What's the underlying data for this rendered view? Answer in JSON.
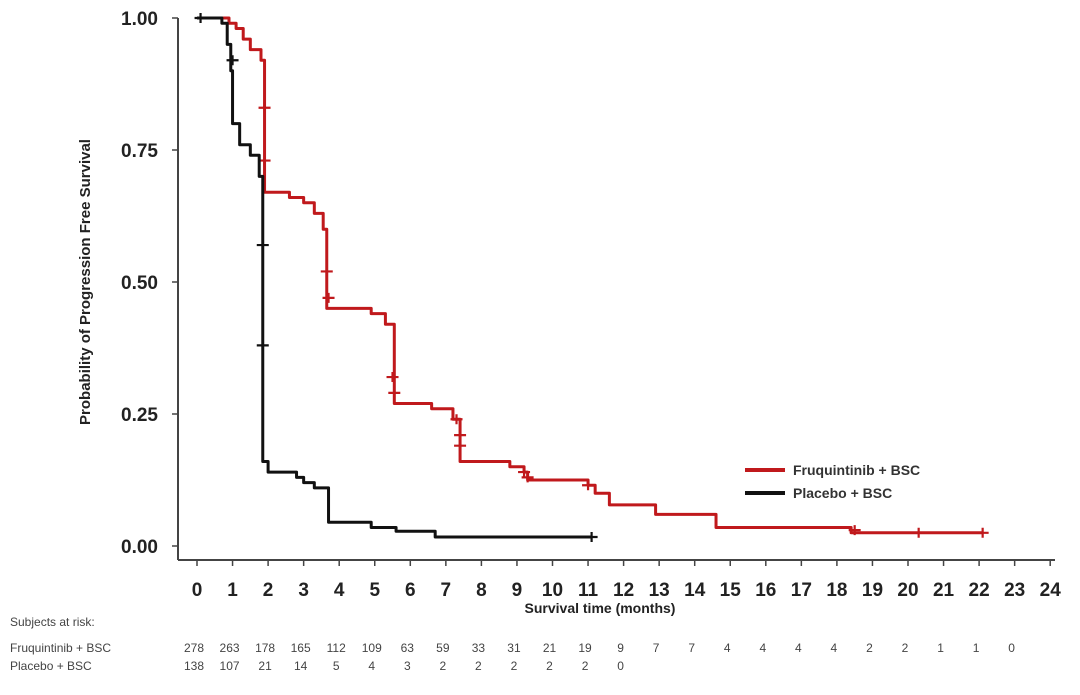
{
  "chart_data": {
    "type": "line",
    "subtype": "kaplan-meier step",
    "title": "",
    "xlabel": "Survival time (months)",
    "ylabel": "Probability of Progression Free Survival",
    "xlim": [
      0,
      24
    ],
    "ylim": [
      0,
      1
    ],
    "xticks": [
      0,
      1,
      2,
      3,
      4,
      5,
      6,
      7,
      8,
      9,
      10,
      11,
      12,
      13,
      14,
      15,
      16,
      17,
      18,
      19,
      20,
      21,
      22,
      23,
      24
    ],
    "yticks": [
      "0.00",
      "0.25",
      "0.50",
      "0.75",
      "1.00"
    ],
    "grid": false,
    "legend_position": "right",
    "series": [
      {
        "name": "Fruquintinib + BSC",
        "color": "#c0191c",
        "steps": [
          [
            0,
            1.0
          ],
          [
            0.9,
            0.99
          ],
          [
            1.1,
            0.98
          ],
          [
            1.3,
            0.96
          ],
          [
            1.5,
            0.94
          ],
          [
            1.8,
            0.92
          ],
          [
            1.9,
            0.67
          ],
          [
            2.6,
            0.66
          ],
          [
            3.0,
            0.65
          ],
          [
            3.3,
            0.63
          ],
          [
            3.55,
            0.6
          ],
          [
            3.65,
            0.45
          ],
          [
            4.9,
            0.44
          ],
          [
            5.3,
            0.42
          ],
          [
            5.55,
            0.27
          ],
          [
            6.6,
            0.26
          ],
          [
            7.2,
            0.24
          ],
          [
            7.4,
            0.16
          ],
          [
            8.8,
            0.15
          ],
          [
            9.2,
            0.14
          ],
          [
            9.3,
            0.125
          ],
          [
            11.0,
            0.115
          ],
          [
            11.2,
            0.1
          ],
          [
            11.6,
            0.078
          ],
          [
            12.9,
            0.06
          ],
          [
            14.6,
            0.035
          ],
          [
            18.4,
            0.025
          ],
          [
            22.1,
            0.025
          ]
        ],
        "censored": [
          [
            1.9,
            0.83
          ],
          [
            1.9,
            0.73
          ],
          [
            3.65,
            0.52
          ],
          [
            3.7,
            0.47
          ],
          [
            5.5,
            0.32
          ],
          [
            5.55,
            0.29
          ],
          [
            7.3,
            0.24
          ],
          [
            7.4,
            0.21
          ],
          [
            7.4,
            0.19
          ],
          [
            9.2,
            0.14
          ],
          [
            9.3,
            0.13
          ],
          [
            11.0,
            0.115
          ],
          [
            18.5,
            0.03
          ],
          [
            20.3,
            0.025
          ],
          [
            22.1,
            0.025
          ]
        ]
      },
      {
        "name": "Placebo + BSC",
        "color": "#111111",
        "steps": [
          [
            0,
            1.0
          ],
          [
            0.7,
            0.99
          ],
          [
            0.85,
            0.95
          ],
          [
            0.95,
            0.9
          ],
          [
            1.0,
            0.8
          ],
          [
            1.2,
            0.76
          ],
          [
            1.5,
            0.74
          ],
          [
            1.75,
            0.7
          ],
          [
            1.85,
            0.16
          ],
          [
            2.0,
            0.14
          ],
          [
            2.8,
            0.13
          ],
          [
            3.0,
            0.12
          ],
          [
            3.3,
            0.11
          ],
          [
            3.7,
            0.045
          ],
          [
            4.9,
            0.035
          ],
          [
            5.6,
            0.028
          ],
          [
            6.7,
            0.017
          ],
          [
            11.1,
            0.017
          ]
        ],
        "censored": [
          [
            0.1,
            1.0
          ],
          [
            1.0,
            0.92
          ],
          [
            1.85,
            0.57
          ],
          [
            1.85,
            0.38
          ],
          [
            11.1,
            0.017
          ]
        ]
      }
    ],
    "at_risk": {
      "label": "Subjects at risk:",
      "rows": [
        {
          "name": "Fruquintinib + BSC",
          "values": [
            "278",
            "263",
            "178",
            "165",
            "112",
            "109",
            "63",
            "59",
            "33",
            "31",
            "21",
            "19",
            "9",
            "7",
            "7",
            "4",
            "4",
            "4",
            "4",
            "2",
            "2",
            "1",
            "1",
            "0"
          ]
        },
        {
          "name": "Placebo + BSC",
          "values": [
            "138",
            "107",
            "21",
            "14",
            "5",
            "4",
            "3",
            "2",
            "2",
            "2",
            "2",
            "2",
            "0"
          ]
        }
      ]
    }
  }
}
